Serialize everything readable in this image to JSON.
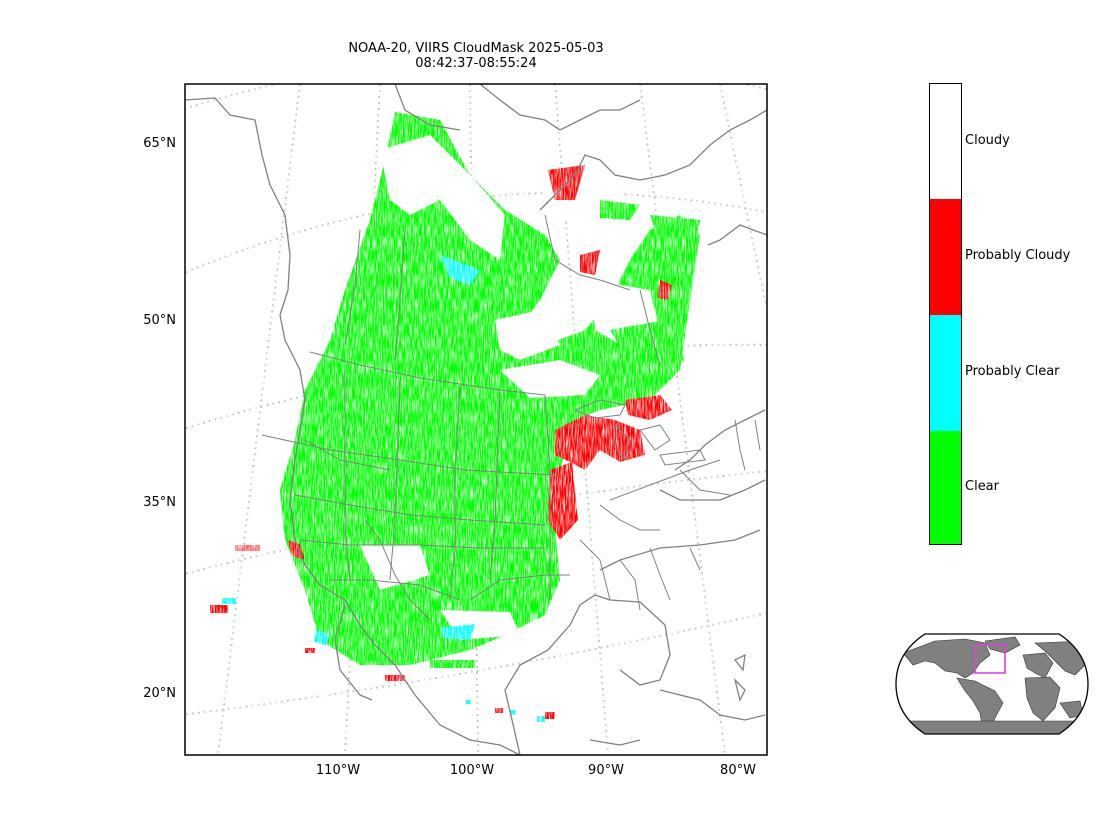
{
  "title": {
    "line1": "NOAA-20, VIIRS CloudMask 2025-05-03",
    "line2": "08:42:37-08:55:24"
  },
  "map": {
    "lat_labels": [
      "65°N",
      "50°N",
      "35°N",
      "20°N"
    ],
    "lon_labels": [
      "110°W",
      "100°W",
      "90°W",
      "80°W"
    ],
    "frame_color": "#000000",
    "coastline_color": "#808080",
    "gridline_color": "#bfbfbf"
  },
  "colorbar": {
    "classes": [
      {
        "label": "Cloudy",
        "color": "#ffffff"
      },
      {
        "label": "Probably Cloudy",
        "color": "#ff0000"
      },
      {
        "label": "Probably Clear",
        "color": "#00ffff"
      },
      {
        "label": "Clear",
        "color": "#00ff00"
      }
    ]
  },
  "inset": {
    "land_color": "#808080",
    "ocean_color": "#ffffff",
    "highlight_color": "#dd44dd"
  }
}
